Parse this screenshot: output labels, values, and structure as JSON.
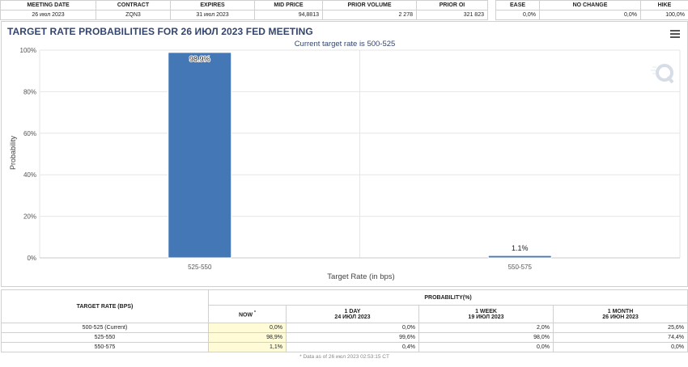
{
  "summary": {
    "headers": [
      "MEETING DATE",
      "CONTRACT",
      "EXPIRES",
      "MID PRICE",
      "PRIOR VOLUME",
      "PRIOR OI",
      "EASE",
      "NO CHANGE",
      "HIKE"
    ],
    "values": [
      "26 июл 2023",
      "ZQN3",
      "31 июл 2023",
      "94,8813",
      "2 278",
      "321 823",
      "0,0%",
      "0,0%",
      "100,0%"
    ]
  },
  "chart_data": {
    "type": "bar",
    "title": "TARGET RATE PROBABILITIES FOR 26 ИЮЛ 2023 FED MEETING",
    "subtitle": "Current target rate is 500-525",
    "categories": [
      "525-550",
      "550-575"
    ],
    "values": [
      98.9,
      1.1
    ],
    "data_labels": [
      "98.9%",
      "1.1%"
    ],
    "xlabel": "Target Rate (in bps)",
    "ylabel": "Probability",
    "ylim": [
      0,
      100
    ],
    "yticks": [
      "0%",
      "20%",
      "40%",
      "60%",
      "80%",
      "100%"
    ],
    "grid": true,
    "bar_color": "#4477b5",
    "subtitle_color": "#33456e",
    "title_color": "#33456e"
  },
  "probability_table": {
    "header_rate": "TARGET RATE (BPS)",
    "header_prob": "PROBABILITY(%)",
    "now_label": "NOW",
    "now_mark": "*",
    "cols": [
      {
        "label": "1 DAY",
        "date": "24 ИЮЛ 2023"
      },
      {
        "label": "1 WEEK",
        "date": "19 ИЮЛ 2023"
      },
      {
        "label": "1 MONTH",
        "date": "26 ИЮН 2023"
      }
    ],
    "rows": [
      {
        "rate": "500-525 (Current)",
        "now": "0,0%",
        "d1": "0,0%",
        "w1": "2,0%",
        "m1": "25,6%"
      },
      {
        "rate": "525-550",
        "now": "98,9%",
        "d1": "99,6%",
        "w1": "98,0%",
        "m1": "74,4%"
      },
      {
        "rate": "550-575",
        "now": "1,1%",
        "d1": "0,4%",
        "w1": "0,0%",
        "m1": "0,0%"
      }
    ],
    "footnote": "* Data as of 26 июл 2023 02:53:15 CT"
  },
  "icons": {
    "menu": "hamburger-menu-icon",
    "logo": "q-logo-icon"
  }
}
